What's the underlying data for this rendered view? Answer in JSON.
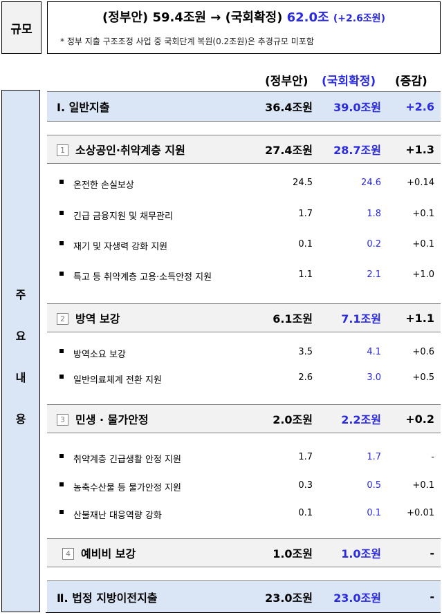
{
  "size_label": "규모",
  "headline": {
    "gov_label": "(정부안)",
    "gov_value": "59.4조원",
    "arrow": "→",
    "final_label": "(국회확정)",
    "final_value": "62.0조",
    "delta": "(+2.6조원)"
  },
  "note": "* 정부 지출 구조조정 사업 중 국회단계 복원(0.2조원)은 추경규모 미포함",
  "columns": {
    "gov": "(정부안)",
    "final": "(국회확정)",
    "delta": "(증감)"
  },
  "main_label_chars": [
    "주",
    "요",
    "내",
    "용"
  ],
  "sections": [
    {
      "num": "",
      "title": "Ⅰ. 일반지출",
      "gov": "36.4조원",
      "final": "39.0조원",
      "delta": "+2.6"
    },
    {
      "num": "1",
      "title": "소상공인·취약계층 지원",
      "gov": "27.4조원",
      "final": "28.7조원",
      "delta": "+1.3",
      "items": [
        {
          "label": "온전한 손실보상",
          "gov": "24.5",
          "final": "24.6",
          "delta": "+0.14"
        },
        {
          "label": "긴급 금융지원 및 채무관리",
          "gov": "1.7",
          "final": "1.8",
          "delta": "+0.1"
        },
        {
          "label": "재기 및 자생력 강화 지원",
          "gov": "0.1",
          "final": "0.2",
          "delta": "+0.1"
        },
        {
          "label": "특고 등 취약계층 고용·소득안정 지원",
          "gov": "1.1",
          "final": "2.1",
          "delta": "+1.0"
        }
      ]
    },
    {
      "num": "2",
      "title": "방역 보강",
      "gov": "6.1조원",
      "final": "7.1조원",
      "delta": "+1.1",
      "items": [
        {
          "label": "방역소요 보강",
          "gov": "3.5",
          "final": "4.1",
          "delta": "+0.6"
        },
        {
          "label": "일반의료체계 전환 지원",
          "gov": "2.6",
          "final": "3.0",
          "delta": "+0.5"
        }
      ]
    },
    {
      "num": "3",
      "title": "민생 · 물가안정",
      "gov": "2.0조원",
      "final": "2.2조원",
      "delta": "+0.2",
      "items": [
        {
          "label": "취약계층 긴급생활 안정 지원",
          "gov": "1.7",
          "final": "1.7",
          "delta": "-"
        },
        {
          "label": "농축수산물 등 물가안정 지원",
          "gov": "0.3",
          "final": "0.5",
          "delta": "+0.1"
        },
        {
          "label": "산불재난 대응역량 강화",
          "gov": "0.1",
          "final": "0.1",
          "delta": "+0.01"
        }
      ]
    },
    {
      "num": "4",
      "title": "예비비 보강",
      "gov": "1.0조원",
      "final": "1.0조원",
      "delta": "-"
    },
    {
      "num": "",
      "title": "Ⅱ. 법정 지방이전지출",
      "gov": "23.0조원",
      "final": "23.0조원",
      "delta": "-"
    }
  ]
}
